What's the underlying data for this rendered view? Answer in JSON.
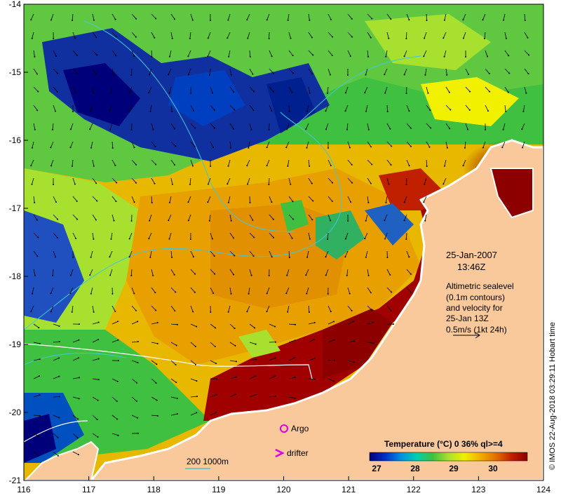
{
  "map": {
    "x_ticks": [
      "116",
      "117",
      "118",
      "119",
      "120",
      "121",
      "122",
      "123",
      "124"
    ],
    "y_ticks": [
      "-14",
      "-15",
      "-16",
      "-17",
      "-18",
      "-19",
      "-20",
      "-21"
    ],
    "lon_range": [
      116,
      124
    ],
    "lat_range": [
      -21,
      -14
    ]
  },
  "annotation": {
    "date": "25-Jan-2007",
    "time": "13:46Z",
    "line1": "Altimetric sealevel",
    "line2": "(0.1m contours)",
    "line3": "and velocity for",
    "line4": "25-Jan 13Z",
    "line5": "0.5m/s (1kt 24h)"
  },
  "legend": {
    "argo": "Argo",
    "drifter": "drifter",
    "scale_bar": "200  1000m"
  },
  "colorbar": {
    "title": "Temperature (°C) 0 36% ql>=4",
    "ticks": [
      "27",
      "28",
      "29",
      "30"
    ],
    "colors": [
      "#00007a",
      "#0030c8",
      "#0090e0",
      "#00d0b0",
      "#40c040",
      "#a8e030",
      "#f0f000",
      "#f0b000",
      "#e07000",
      "#c02000",
      "#8c0000"
    ]
  },
  "copyright": "© IMOS 22-Aug-2018 03:29:11 Hobart time",
  "colors": {
    "land": "#f9c99b",
    "coast": "#ffffff",
    "contour_cyan": "#40c8d8",
    "argo_marker": "#e000e0"
  }
}
